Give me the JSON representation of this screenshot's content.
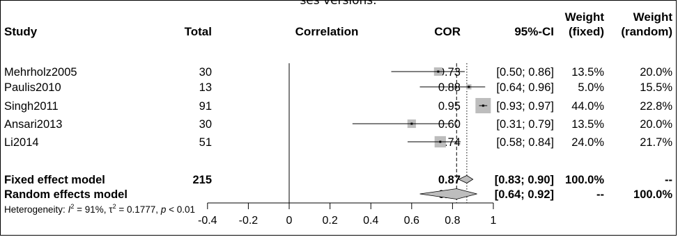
{
  "caption": "ses versions.",
  "headers": {
    "study": "Study",
    "total": "Total",
    "correlation": "Correlation",
    "cor": "COR",
    "ci": "95%-CI",
    "weight_fixed": [
      "Weight",
      "(fixed)"
    ],
    "weight_random": [
      "Weight",
      "(random)"
    ]
  },
  "studies": [
    {
      "study": "Mehrholz2005",
      "total": "30",
      "cor": "0.73",
      "ci": "[0.50; 0.86]",
      "w_fixed": "13.5%",
      "w_random": "20.0%"
    },
    {
      "study": "Paulis2010",
      "total": "13",
      "cor": "0.88",
      "ci": "[0.64; 0.96]",
      "w_fixed": "5.0%",
      "w_random": "15.5%"
    },
    {
      "study": "Singh2011",
      "total": "91",
      "cor": "0.95",
      "ci": "[0.93; 0.97]",
      "w_fixed": "44.0%",
      "w_random": "22.8%"
    },
    {
      "study": "Ansari2013",
      "total": "30",
      "cor": "0.60",
      "ci": "[0.31; 0.79]",
      "w_fixed": "13.5%",
      "w_random": "20.0%"
    },
    {
      "study": "Li2014",
      "total": "51",
      "cor": "0.74",
      "ci": "[0.58; 0.84]",
      "w_fixed": "24.0%",
      "w_random": "21.7%"
    }
  ],
  "summary": [
    {
      "study": "Fixed effect model",
      "total": "215",
      "cor": "0.87",
      "ci": "[0.83; 0.90]",
      "w_fixed": "100.0%",
      "w_random": "--"
    },
    {
      "study": "Random effects model",
      "total": "",
      "cor": "0.82",
      "ci": "[0.64; 0.92]",
      "w_fixed": "--",
      "w_random": "100.0%"
    }
  ],
  "heterogeneity": {
    "prefix": "Heterogeneity: ",
    "i2_symbol": "I",
    "i2_value": " = 91%, ",
    "tau2_symbol": "τ",
    "tau2_value": " = 0.1777, ",
    "p_symbol": "p",
    "p_value": " < 0.01"
  },
  "colors": {
    "square": "#bdbdbd",
    "diamond": "#bdbdbd",
    "line": "#000000"
  },
  "chart_data": {
    "type": "forest",
    "x_ticks": [
      "-0.4",
      "-0.2",
      "0",
      "0.2",
      "0.4",
      "0.6",
      "0.8",
      "1"
    ],
    "xlim": [
      -0.4,
      1.0
    ],
    "null_line": 0,
    "fixed_line": 0.87,
    "random_line": 0.82,
    "series": [
      {
        "study": "Mehrholz2005",
        "cor": 0.73,
        "lower": 0.5,
        "upper": 0.86,
        "weight_fixed": 13.5
      },
      {
        "study": "Paulis2010",
        "cor": 0.88,
        "lower": 0.64,
        "upper": 0.96,
        "weight_fixed": 5.0
      },
      {
        "study": "Singh2011",
        "cor": 0.95,
        "lower": 0.93,
        "upper": 0.97,
        "weight_fixed": 44.0
      },
      {
        "study": "Ansari2013",
        "cor": 0.6,
        "lower": 0.31,
        "upper": 0.79,
        "weight_fixed": 13.5
      },
      {
        "study": "Li2014",
        "cor": 0.74,
        "lower": 0.58,
        "upper": 0.84,
        "weight_fixed": 24.0
      }
    ],
    "summary": [
      {
        "model": "Fixed effect model",
        "cor": 0.87,
        "lower": 0.83,
        "upper": 0.9
      },
      {
        "model": "Random effects model",
        "cor": 0.82,
        "lower": 0.64,
        "upper": 0.92
      }
    ]
  }
}
